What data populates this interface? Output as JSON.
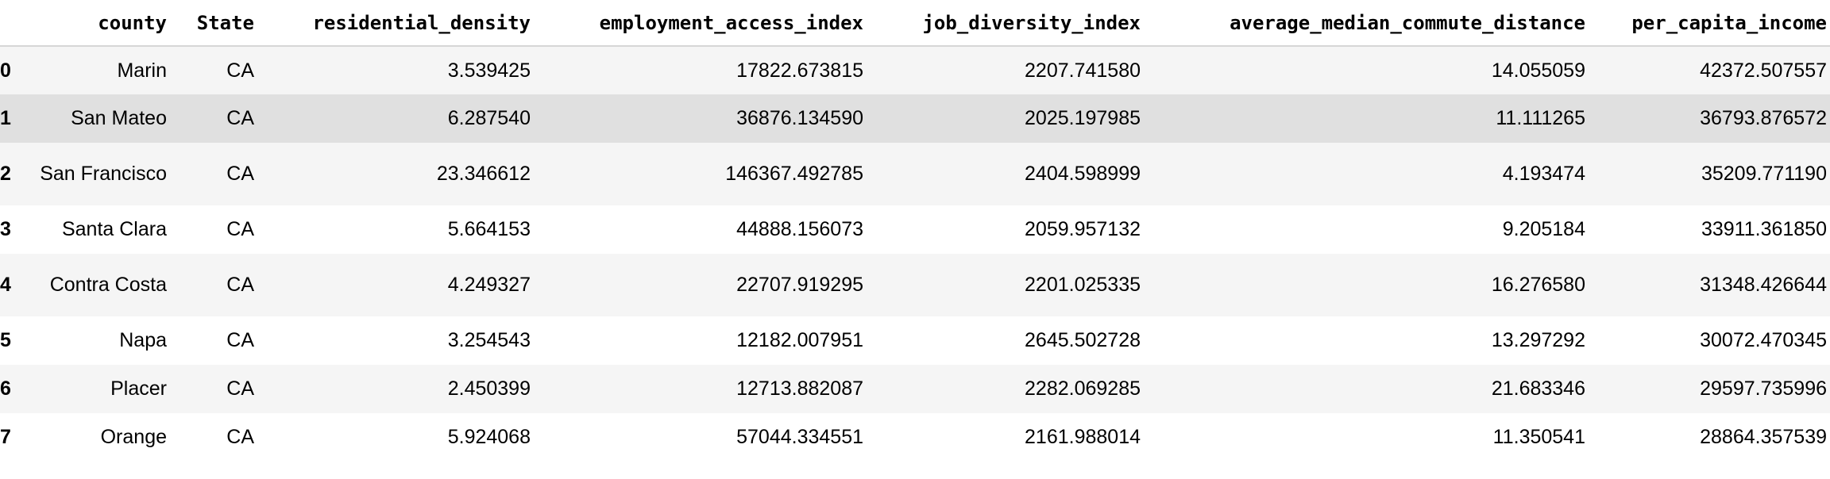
{
  "table": {
    "columns": [
      "county",
      "State",
      "residential_density",
      "employment_access_index",
      "job_diversity_index",
      "average_median_commute_distance",
      "per_capita_income"
    ],
    "rows": [
      {
        "index": "0",
        "county": "Marin",
        "state": "CA",
        "residential_density": "3.539425",
        "employment_access_index": "17822.673815",
        "job_diversity_index": "2207.741580",
        "average_median_commute_distance": "14.055059",
        "per_capita_income": "42372.507557"
      },
      {
        "index": "1",
        "county": "San Mateo",
        "state": "CA",
        "residential_density": "6.287540",
        "employment_access_index": "36876.134590",
        "job_diversity_index": "2025.197985",
        "average_median_commute_distance": "11.111265",
        "per_capita_income": "36793.876572"
      },
      {
        "index": "2",
        "county": "San Francisco",
        "state": "CA",
        "residential_density": "23.346612",
        "employment_access_index": "146367.492785",
        "job_diversity_index": "2404.598999",
        "average_median_commute_distance": "4.193474",
        "per_capita_income": "35209.771190"
      },
      {
        "index": "3",
        "county": "Santa Clara",
        "state": "CA",
        "residential_density": "5.664153",
        "employment_access_index": "44888.156073",
        "job_diversity_index": "2059.957132",
        "average_median_commute_distance": "9.205184",
        "per_capita_income": "33911.361850"
      },
      {
        "index": "4",
        "county": "Contra Costa",
        "state": "CA",
        "residential_density": "4.249327",
        "employment_access_index": "22707.919295",
        "job_diversity_index": "2201.025335",
        "average_median_commute_distance": "16.276580",
        "per_capita_income": "31348.426644"
      },
      {
        "index": "5",
        "county": "Napa",
        "state": "CA",
        "residential_density": "3.254543",
        "employment_access_index": "12182.007951",
        "job_diversity_index": "2645.502728",
        "average_median_commute_distance": "13.297292",
        "per_capita_income": "30072.470345"
      },
      {
        "index": "6",
        "county": "Placer",
        "state": "CA",
        "residential_density": "2.450399",
        "employment_access_index": "12713.882087",
        "job_diversity_index": "2282.069285",
        "average_median_commute_distance": "21.683346",
        "per_capita_income": "29597.735996"
      },
      {
        "index": "7",
        "county": "Orange",
        "state": "CA",
        "residential_density": "5.924068",
        "employment_access_index": "57044.334551",
        "job_diversity_index": "2161.988014",
        "average_median_commute_distance": "11.350541",
        "per_capita_income": "28864.357539"
      }
    ]
  }
}
